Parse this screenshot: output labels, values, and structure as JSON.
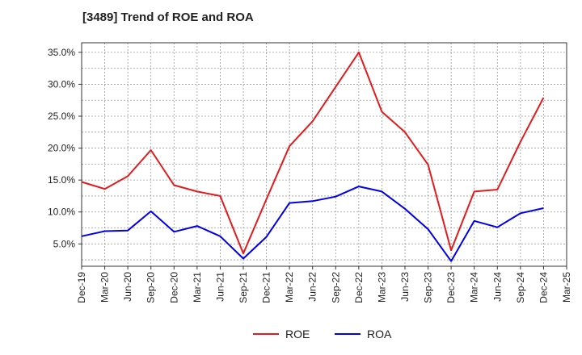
{
  "chart_data": {
    "type": "line",
    "title": "[3489]  Trend of ROE and ROA",
    "xlabel": "",
    "ylabel": "",
    "categories": [
      "Dec-19",
      "Mar-20",
      "Jun-20",
      "Sep-20",
      "Dec-20",
      "Mar-21",
      "Jun-21",
      "Sep-21",
      "Dec-21",
      "Mar-22",
      "Jun-22",
      "Sep-22",
      "Dec-22",
      "Mar-23",
      "Jun-23",
      "Sep-23",
      "Dec-23",
      "Mar-24",
      "Jun-24",
      "Sep-24",
      "Dec-24",
      "Mar-25"
    ],
    "y_ticks": [
      "5.0%",
      "10.0%",
      "15.0%",
      "20.0%",
      "25.0%",
      "30.0%",
      "35.0%"
    ],
    "ylim": [
      1.5,
      36.5
    ],
    "grid": true,
    "legend_position": "bottom",
    "series": [
      {
        "name": "ROE",
        "color": "#e41a1c",
        "values": [
          14.7,
          13.6,
          15.6,
          19.7,
          14.2,
          13.2,
          12.5,
          3.5,
          12.0,
          20.3,
          24.2,
          29.6,
          35.0,
          25.7,
          22.5,
          17.4,
          4.0,
          13.2,
          13.5,
          21.0,
          27.9,
          null
        ]
      },
      {
        "name": "ROA",
        "color": "#0000ee",
        "values": [
          6.2,
          7.0,
          7.1,
          10.1,
          6.9,
          7.8,
          6.2,
          2.7,
          6.1,
          11.4,
          11.7,
          12.4,
          14.0,
          13.2,
          10.5,
          7.3,
          2.3,
          8.6,
          7.6,
          9.8,
          10.6,
          null
        ]
      }
    ]
  }
}
